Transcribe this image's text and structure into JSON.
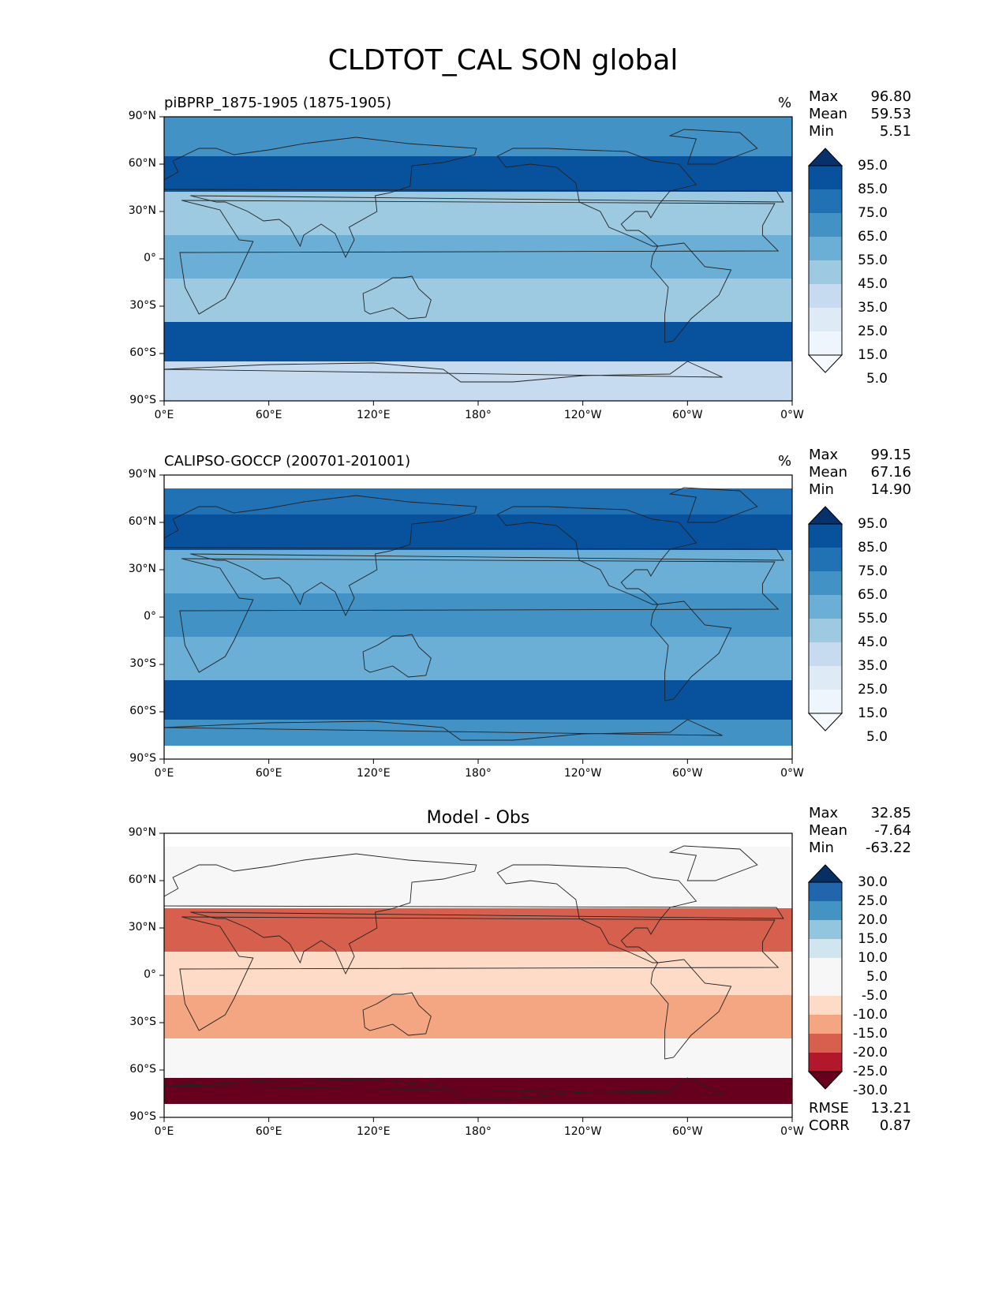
{
  "title": "CLDTOT_CAL SON global",
  "chart_data": [
    {
      "type": "heatmap",
      "title": "piBPRP_1875-1905 (1875-1905)",
      "units": "%",
      "stats": {
        "max_label": "Max",
        "max": "96.80",
        "mean_label": "Mean",
        "mean": "59.53",
        "min_label": "Min",
        "min": "5.51"
      },
      "x_ticks": [
        "0°E",
        "60°E",
        "120°E",
        "180°",
        "120°W",
        "60°W",
        "0°W"
      ],
      "y_ticks": [
        "90°N",
        "60°N",
        "30°N",
        "0°",
        "30°S",
        "60°S",
        "90°S"
      ],
      "colorbar": {
        "levels": [
          "95.0",
          "85.0",
          "75.0",
          "65.0",
          "55.0",
          "45.0",
          "35.0",
          "25.0",
          "15.0",
          "5.0"
        ],
        "colors": [
          "#08306b",
          "#08519c",
          "#2171b5",
          "#4292c6",
          "#6baed6",
          "#9ecae1",
          "#c6dbef",
          "#deebf7",
          "#eef5fc",
          "#f7fbff"
        ]
      },
      "zonal_profile": [
        {
          "lat": 75,
          "value": 65
        },
        {
          "lat": 55,
          "value": 88
        },
        {
          "lat": 30,
          "value": 50
        },
        {
          "lat": 0,
          "value": 60
        },
        {
          "lat": -25,
          "value": 45
        },
        {
          "lat": -55,
          "value": 92
        },
        {
          "lat": -75,
          "value": 35
        }
      ]
    },
    {
      "type": "heatmap",
      "title": "CALIPSO-GOCCP (200701-201001)",
      "units": "%",
      "stats": {
        "max_label": "Max",
        "max": "99.15",
        "mean_label": "Mean",
        "mean": "67.16",
        "min_label": "Min",
        "min": "14.90"
      },
      "x_ticks": [
        "0°E",
        "60°E",
        "120°E",
        "180°",
        "120°W",
        "60°W",
        "0°W"
      ],
      "y_ticks": [
        "90°N",
        "60°N",
        "30°N",
        "0°",
        "30°S",
        "60°S",
        "90°S"
      ],
      "colorbar": {
        "levels": [
          "95.0",
          "85.0",
          "75.0",
          "65.0",
          "55.0",
          "45.0",
          "35.0",
          "25.0",
          "15.0",
          "5.0"
        ],
        "colors": [
          "#08306b",
          "#08519c",
          "#2171b5",
          "#4292c6",
          "#6baed6",
          "#9ecae1",
          "#c6dbef",
          "#deebf7",
          "#eef5fc",
          "#f7fbff"
        ]
      },
      "zonal_profile": [
        {
          "lat": 75,
          "value": 75
        },
        {
          "lat": 55,
          "value": 85
        },
        {
          "lat": 30,
          "value": 60
        },
        {
          "lat": 0,
          "value": 70
        },
        {
          "lat": -25,
          "value": 55
        },
        {
          "lat": -55,
          "value": 92
        },
        {
          "lat": -75,
          "value": 70
        }
      ]
    },
    {
      "type": "heatmap",
      "title": "Model - Obs",
      "stats": {
        "max_label": "Max",
        "max": "32.85",
        "mean_label": "Mean",
        "mean": "-7.64",
        "min_label": "Min",
        "min": "-63.22"
      },
      "footer": {
        "rmse_label": "RMSE",
        "rmse": "13.21",
        "corr_label": "CORR",
        "corr": "0.87"
      },
      "x_ticks": [
        "0°E",
        "60°E",
        "120°E",
        "180°",
        "120°W",
        "60°W",
        "0°W"
      ],
      "y_ticks": [
        "90°N",
        "60°N",
        "30°N",
        "0°",
        "30°S",
        "60°S",
        "90°S"
      ],
      "colorbar": {
        "levels": [
          "30.0",
          "25.0",
          "20.0",
          "15.0",
          "10.0",
          "5.0",
          "-5.0",
          "-10.0",
          "-15.0",
          "-20.0",
          "-25.0",
          "-30.0"
        ],
        "colors": [
          "#053061",
          "#2166ac",
          "#4393c3",
          "#92c5de",
          "#d1e5f0",
          "#f7f7f7",
          "#f7f7f7",
          "#fddbc7",
          "#f4a582",
          "#d6604d",
          "#b2182b",
          "#67001f"
        ]
      },
      "zonal_profile": [
        {
          "lat": 75,
          "value": 5
        },
        {
          "lat": 55,
          "value": 0
        },
        {
          "lat": 30,
          "value": -15
        },
        {
          "lat": 0,
          "value": -8
        },
        {
          "lat": -25,
          "value": -12
        },
        {
          "lat": -55,
          "value": 0
        },
        {
          "lat": -75,
          "value": -25
        }
      ]
    }
  ]
}
